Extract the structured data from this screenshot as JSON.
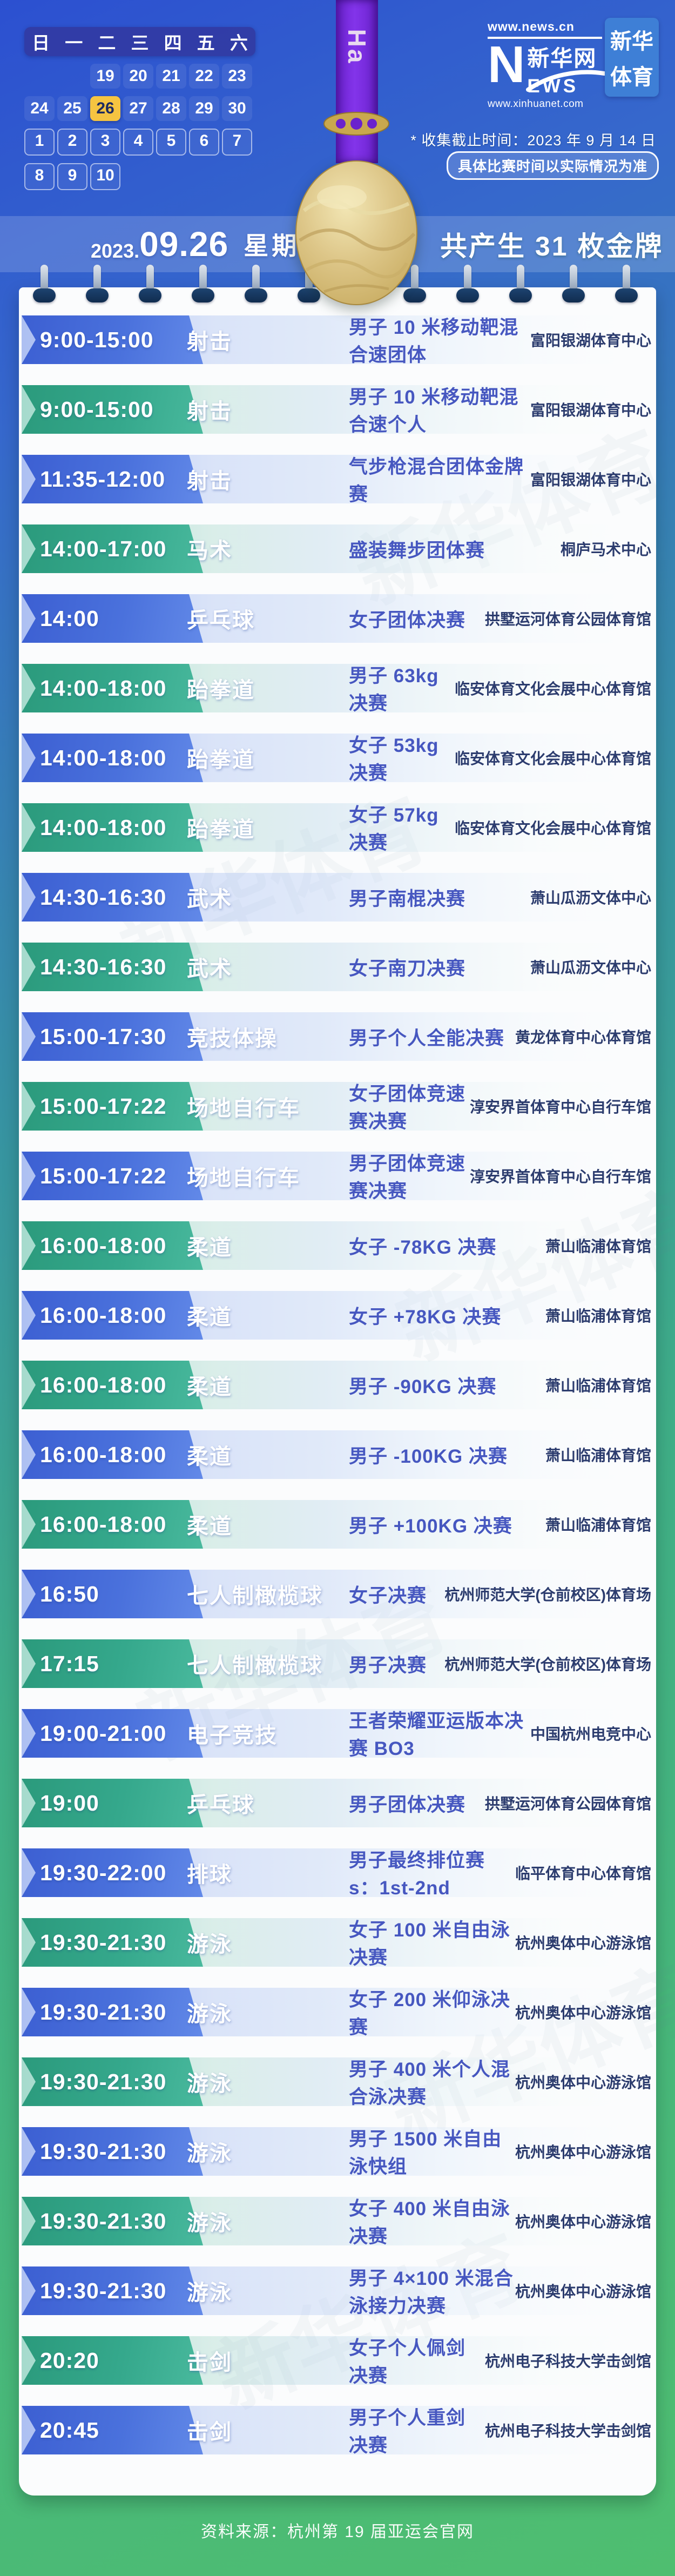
{
  "header": {
    "calendar": {
      "weekdays": [
        "日",
        "一",
        "二",
        "三",
        "四",
        "五",
        "六"
      ],
      "rows": [
        [
          [
            "",
            ""
          ],
          [
            "",
            ""
          ],
          [
            "19",
            "sep"
          ],
          [
            "20",
            "sep"
          ],
          [
            "21",
            "sep"
          ],
          [
            "22",
            "sep"
          ],
          [
            "23",
            "sep"
          ]
        ],
        [
          [
            "24",
            "sep"
          ],
          [
            "25",
            "sep"
          ],
          [
            "26",
            "today"
          ],
          [
            "27",
            "sep"
          ],
          [
            "28",
            "sep"
          ],
          [
            "29",
            "sep"
          ],
          [
            "30",
            "sep"
          ]
        ],
        [
          [
            "1",
            "oct"
          ],
          [
            "2",
            "oct"
          ],
          [
            "3",
            "oct"
          ],
          [
            "4",
            "oct"
          ],
          [
            "5",
            "oct"
          ],
          [
            "6",
            "oct"
          ],
          [
            "7",
            "oct"
          ]
        ],
        [
          [
            "8",
            "oct"
          ],
          [
            "9",
            "oct"
          ],
          [
            "10",
            "oct"
          ],
          [
            "",
            ""
          ],
          [
            "",
            ""
          ],
          [
            "",
            ""
          ],
          [
            "",
            ""
          ]
        ]
      ]
    },
    "ribbon_text": "Ha",
    "logo": {
      "url_top": "www.news.cn",
      "n_mark": "N",
      "cn_name": "新华网",
      "ews": "EWS",
      "url_bottom": "www.xinhuanet.com"
    },
    "badge": {
      "line1": "新华",
      "line2": "体育"
    },
    "deadline_note": "* 收集截止时间：2023 年 9 月 14 日",
    "disclaimer": "具体比赛时间以实际情况为准"
  },
  "date_banner": {
    "year": "2023.",
    "date": "09.26",
    "weekday": "星期二",
    "gold_total": "共产生 31 枚金牌"
  },
  "watermark_text": "新华体育",
  "schedule": [
    {
      "time": "9:00-15:00",
      "sport": "射击",
      "event": "男子 10 米移动靶混合速团体",
      "venue": "富阳银湖体育中心"
    },
    {
      "time": "9:00-15:00",
      "sport": "射击",
      "event": "男子 10 米移动靶混合速个人",
      "venue": "富阳银湖体育中心"
    },
    {
      "time": "11:35-12:00",
      "sport": "射击",
      "event": "气步枪混合团体金牌赛",
      "venue": "富阳银湖体育中心"
    },
    {
      "time": "14:00-17:00",
      "sport": "马术",
      "event": "盛装舞步团体赛",
      "venue": "桐庐马术中心"
    },
    {
      "time": "14:00",
      "sport": "乒乓球",
      "event": "女子团体决赛",
      "venue": "拱墅运河体育公园体育馆"
    },
    {
      "time": "14:00-18:00",
      "sport": "跆拳道",
      "event": "男子 63kg 决赛",
      "venue": "临安体育文化会展中心体育馆"
    },
    {
      "time": "14:00-18:00",
      "sport": "跆拳道",
      "event": "女子 53kg 决赛",
      "venue": "临安体育文化会展中心体育馆"
    },
    {
      "time": "14:00-18:00",
      "sport": "跆拳道",
      "event": "女子 57kg 决赛",
      "venue": "临安体育文化会展中心体育馆"
    },
    {
      "time": "14:30-16:30",
      "sport": "武术",
      "event": "男子南棍决赛",
      "venue": "萧山瓜沥文体中心"
    },
    {
      "time": "14:30-16:30",
      "sport": "武术",
      "event": "女子南刀决赛",
      "venue": "萧山瓜沥文体中心"
    },
    {
      "time": "15:00-17:30",
      "sport": "竞技体操",
      "event": "男子个人全能决赛",
      "venue": "黄龙体育中心体育馆"
    },
    {
      "time": "15:00-17:22",
      "sport": "场地自行车",
      "event": "女子团体竞速赛决赛",
      "venue": "淳安界首体育中心自行车馆"
    },
    {
      "time": "15:00-17:22",
      "sport": "场地自行车",
      "event": "男子团体竞速赛决赛",
      "venue": "淳安界首体育中心自行车馆"
    },
    {
      "time": "16:00-18:00",
      "sport": "柔道",
      "event": "女子 -78KG 决赛",
      "venue": "萧山临浦体育馆"
    },
    {
      "time": "16:00-18:00",
      "sport": "柔道",
      "event": "女子 +78KG 决赛",
      "venue": "萧山临浦体育馆"
    },
    {
      "time": "16:00-18:00",
      "sport": "柔道",
      "event": "男子 -90KG 决赛",
      "venue": "萧山临浦体育馆"
    },
    {
      "time": "16:00-18:00",
      "sport": "柔道",
      "event": "男子 -100KG 决赛",
      "venue": "萧山临浦体育馆"
    },
    {
      "time": "16:00-18:00",
      "sport": "柔道",
      "event": "男子 +100KG 决赛",
      "venue": "萧山临浦体育馆"
    },
    {
      "time": "16:50",
      "sport": "七人制橄榄球",
      "event": "女子决赛",
      "venue": "杭州师范大学(仓前校区)体育场"
    },
    {
      "time": "17:15",
      "sport": "七人制橄榄球",
      "event": "男子决赛",
      "venue": "杭州师范大学(仓前校区)体育场"
    },
    {
      "time": "19:00-21:00",
      "sport": "电子竞技",
      "event": "王者荣耀亚运版本决赛 BO3",
      "venue": "中国杭州电竞中心"
    },
    {
      "time": "19:00",
      "sport": "乒乓球",
      "event": "男子团体决赛",
      "venue": "拱墅运河体育公园体育馆"
    },
    {
      "time": "19:30-22:00",
      "sport": "排球",
      "event": "男子最终排位赛 s：1st-2nd",
      "venue": "临平体育中心体育馆"
    },
    {
      "time": "19:30-21:30",
      "sport": "游泳",
      "event": "女子 100 米自由泳决赛",
      "venue": "杭州奥体中心游泳馆"
    },
    {
      "time": "19:30-21:30",
      "sport": "游泳",
      "event": "女子 200 米仰泳决赛",
      "venue": "杭州奥体中心游泳馆"
    },
    {
      "time": "19:30-21:30",
      "sport": "游泳",
      "event": "男子 400 米个人混合泳决赛",
      "venue": "杭州奥体中心游泳馆"
    },
    {
      "time": "19:30-21:30",
      "sport": "游泳",
      "event": "男子 1500 米自由泳快组",
      "venue": "杭州奥体中心游泳馆"
    },
    {
      "time": "19:30-21:30",
      "sport": "游泳",
      "event": "女子 400 米自由泳决赛",
      "venue": "杭州奥体中心游泳馆"
    },
    {
      "time": "19:30-21:30",
      "sport": "游泳",
      "event": "男子 4×100 米混合泳接力决赛",
      "venue": "杭州奥体中心游泳馆"
    },
    {
      "time": "20:20",
      "sport": "击剑",
      "event": "女子个人佩剑决赛",
      "venue": "杭州电子科技大学击剑馆"
    },
    {
      "time": "20:45",
      "sport": "击剑",
      "event": "男子个人重剑决赛",
      "venue": "杭州电子科技大学击剑馆"
    }
  ],
  "footer": {
    "source": "资料来源：杭州第 19 届亚运会官网"
  },
  "theme": {
    "accent_yellow": "#f5c441",
    "row_blue": "#4a71dc",
    "row_teal": "#35a88c",
    "event_text": "#4657c0",
    "venue_text": "#2c3c6e",
    "ribbon_purple": "#8334ea",
    "medal_gold": "#ddc688",
    "badge_blue": "#3e7fd6"
  }
}
